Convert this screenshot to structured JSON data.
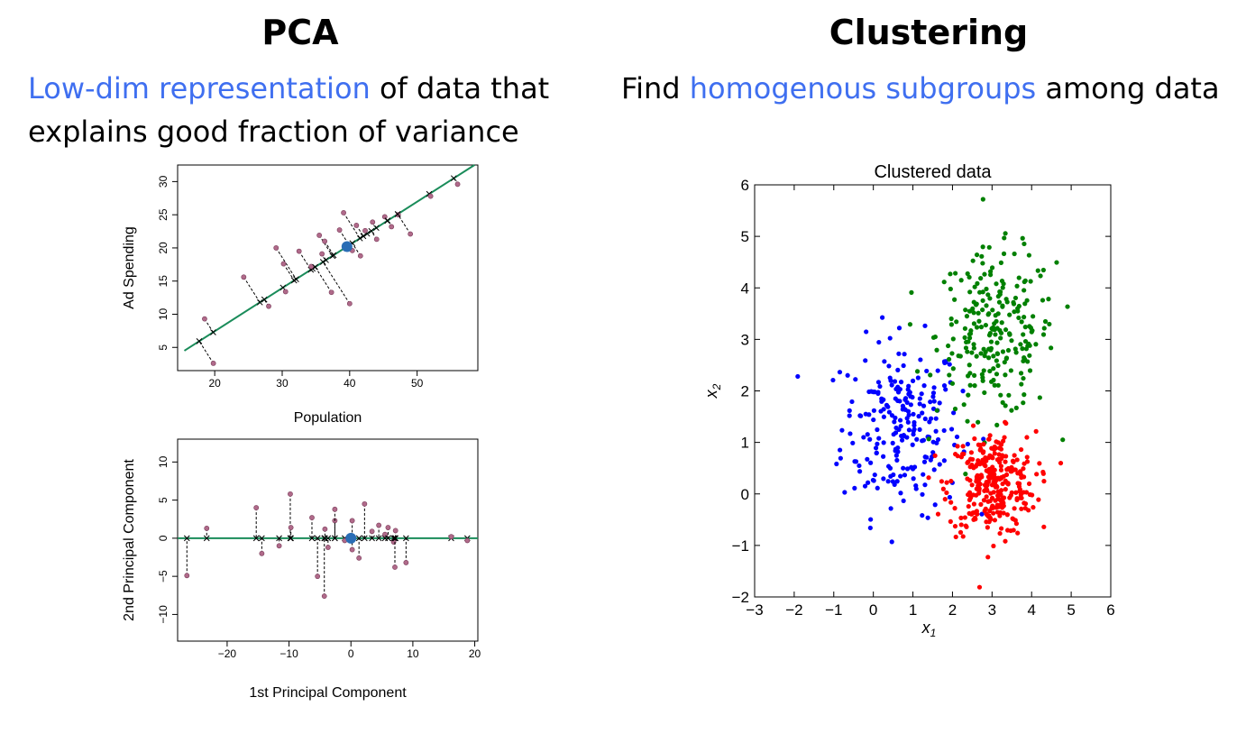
{
  "pca": {
    "heading": "PCA",
    "sub_hl": "Low-dim representation",
    "sub_rest1": " of data that",
    "sub_line2": "explains good fraction of variance"
  },
  "clustering": {
    "heading": "Clustering",
    "sub_pre": "Find ",
    "sub_hl": "homogenous subgroups",
    "sub_post": " among data"
  },
  "colors": {
    "highlight": "#3f6ff0",
    "line": "#1a8c5a",
    "point": "#b06a8a",
    "mean": "#2a6db5",
    "cluster_blue": "#0000ff",
    "cluster_green": "#008000",
    "cluster_red": "#ff0000"
  },
  "chart_data": [
    {
      "type": "scatter",
      "title": "",
      "xlabel": "Population",
      "ylabel": "Ad Spending",
      "xlim": [
        14.5,
        59
      ],
      "ylim": [
        1.5,
        32.5
      ],
      "xticks": [
        20,
        30,
        40,
        50
      ],
      "yticks": [
        5,
        10,
        15,
        20,
        25,
        30
      ],
      "line": {
        "x": [
          15.5,
          58.5
        ],
        "y": [
          4.5,
          32.5
        ]
      },
      "mean_point": {
        "x": 39.6,
        "y": 20.2
      },
      "points": [
        [
          18.5,
          9.3
        ],
        [
          19.8,
          2.6
        ],
        [
          24.3,
          15.6
        ],
        [
          28.0,
          11.2
        ],
        [
          29.1,
          20.0
        ],
        [
          30.2,
          17.6
        ],
        [
          30.5,
          13.4
        ],
        [
          32.5,
          19.5
        ],
        [
          34.3,
          17.2
        ],
        [
          35.5,
          21.9
        ],
        [
          35.9,
          19.1
        ],
        [
          36.3,
          21.0
        ],
        [
          37.3,
          13.3
        ],
        [
          38.5,
          22.7
        ],
        [
          39.1,
          25.3
        ],
        [
          40.0,
          11.6
        ],
        [
          40.4,
          19.6
        ],
        [
          41.0,
          23.4
        ],
        [
          41.6,
          18.8
        ],
        [
          42.3,
          22.6
        ],
        [
          43.4,
          23.9
        ],
        [
          44.0,
          21.3
        ],
        [
          45.2,
          24.7
        ],
        [
          46.2,
          23.2
        ],
        [
          47.2,
          25.0
        ],
        [
          49.0,
          22.1
        ],
        [
          52.0,
          27.8
        ],
        [
          56.0,
          29.6
        ]
      ]
    },
    {
      "type": "scatter",
      "title": "",
      "xlabel": "1st Principal Component",
      "ylabel": "2nd Principal Component",
      "xlim": [
        -28,
        20.5
      ],
      "ylim": [
        -13.5,
        13
      ],
      "xticks": [
        -20,
        -10,
        0,
        10,
        20
      ],
      "yticks": [
        -10,
        -5,
        0,
        5,
        10
      ],
      "mean_point": {
        "x": 0,
        "y": 0
      },
      "points": [
        [
          -26.5,
          -4.9
        ],
        [
          -23.3,
          1.3
        ],
        [
          -15.3,
          4.0
        ],
        [
          -14.4,
          -2.0
        ],
        [
          -11.6,
          -1.0
        ],
        [
          -9.8,
          5.8
        ],
        [
          -9.7,
          1.4
        ],
        [
          -6.3,
          2.7
        ],
        [
          -5.4,
          -5.0
        ],
        [
          -4.2,
          1.2
        ],
        [
          -4.3,
          -7.6
        ],
        [
          -3.7,
          -1.2
        ],
        [
          -2.6,
          2.3
        ],
        [
          -2.6,
          3.8
        ],
        [
          -1.0,
          -0.3
        ],
        [
          0.2,
          2.3
        ],
        [
          0.2,
          -1.5
        ],
        [
          1.3,
          -2.6
        ],
        [
          2.2,
          4.5
        ],
        [
          3.4,
          0.9
        ],
        [
          4.5,
          1.7
        ],
        [
          5.5,
          0.5
        ],
        [
          6.0,
          1.4
        ],
        [
          6.9,
          -0.5
        ],
        [
          7.2,
          1.0
        ],
        [
          7.1,
          -3.8
        ],
        [
          8.9,
          -3.2
        ],
        [
          16.2,
          0.2
        ],
        [
          18.8,
          -0.3
        ]
      ]
    },
    {
      "type": "scatter",
      "title": "Clustered data",
      "xlabel": "x1",
      "ylabel": "x2",
      "xlim": [
        -3,
        6
      ],
      "ylim": [
        -2,
        6
      ],
      "xticks": [
        -3,
        -2,
        -1,
        0,
        1,
        2,
        3,
        4,
        5,
        6
      ],
      "yticks": [
        -2,
        -1,
        0,
        1,
        2,
        3,
        4,
        5,
        6
      ],
      "series": [
        {
          "color": "blue",
          "center": [
            0.7,
            1.3
          ],
          "spread": [
            0.75,
            0.85
          ],
          "n": 230
        },
        {
          "color": "green",
          "center": [
            3.1,
            3.1
          ],
          "spread": [
            0.75,
            0.8
          ],
          "n": 240
        },
        {
          "color": "red",
          "center": [
            3.0,
            0.2
          ],
          "spread": [
            0.55,
            0.5
          ],
          "n": 300
        }
      ]
    }
  ]
}
